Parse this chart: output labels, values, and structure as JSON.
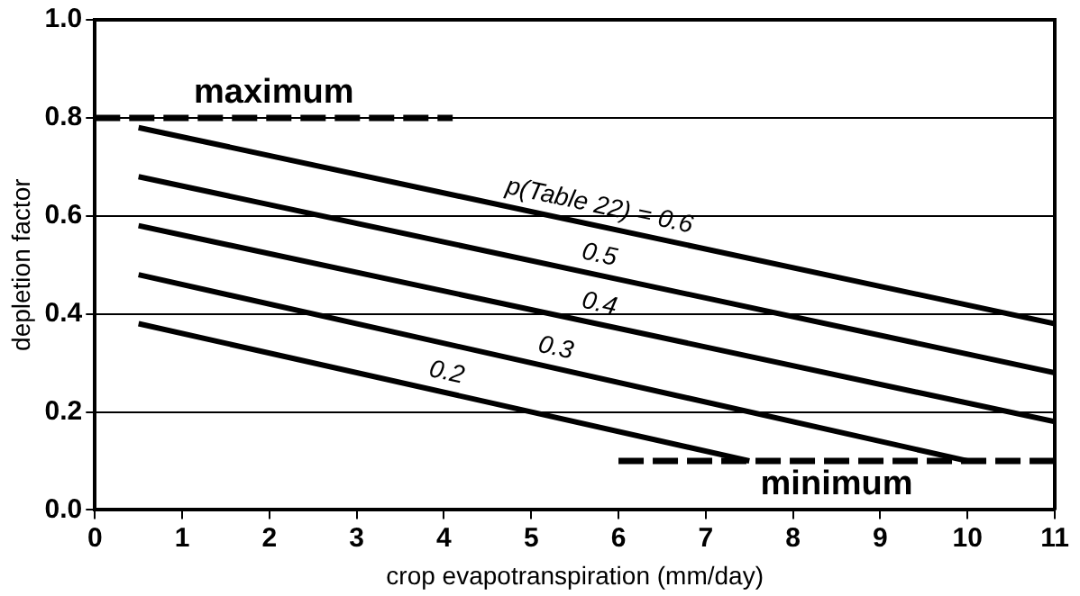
{
  "chart_data": {
    "type": "line",
    "xlabel": "crop evapotranspiration (mm/day)",
    "ylabel": "depletion factor",
    "xlim": [
      0,
      11
    ],
    "xticks": [
      0,
      1,
      2,
      3,
      4,
      5,
      6,
      7,
      8,
      9,
      10,
      11
    ],
    "ylim": [
      0,
      1
    ],
    "yticks": [
      {
        "value": 0,
        "label": "0.0"
      },
      {
        "value": 0.2,
        "label": "0.2"
      },
      {
        "value": 0.4,
        "label": "0.4"
      },
      {
        "value": 0.6,
        "label": "0.6"
      },
      {
        "value": 0.8,
        "label": "0.8"
      },
      {
        "value": 1,
        "label": "1.0"
      }
    ],
    "grid": "y",
    "marker": "none",
    "legend": false,
    "series": [
      {
        "name": "p(Table 22) = 0.6",
        "color": "#000000",
        "x": [
          0.5,
          11
        ],
        "values": [
          0.78,
          0.38
        ],
        "line_style": "solid"
      },
      {
        "name": "0.5",
        "color": "#000000",
        "x": [
          0.5,
          11
        ],
        "values": [
          0.68,
          0.28
        ],
        "line_style": "solid"
      },
      {
        "name": "0.4",
        "color": "#000000",
        "x": [
          0.5,
          11
        ],
        "values": [
          0.58,
          0.18
        ],
        "line_style": "solid"
      },
      {
        "name": "0.3",
        "color": "#000000",
        "x": [
          0.5,
          10
        ],
        "values": [
          0.48,
          0.1
        ],
        "line_style": "solid"
      },
      {
        "name": "0.2",
        "color": "#000000",
        "x": [
          0.5,
          7.5
        ],
        "values": [
          0.38,
          0.1
        ],
        "line_style": "solid"
      },
      {
        "name": "maximum",
        "color": "#000000",
        "x": [
          0,
          4.1
        ],
        "values": [
          0.8,
          0.8
        ],
        "line_style": "dashed"
      },
      {
        "name": "minimum",
        "color": "#000000",
        "x": [
          6,
          11
        ],
        "values": [
          0.1,
          0.1
        ],
        "line_style": "dashed"
      }
    ]
  }
}
